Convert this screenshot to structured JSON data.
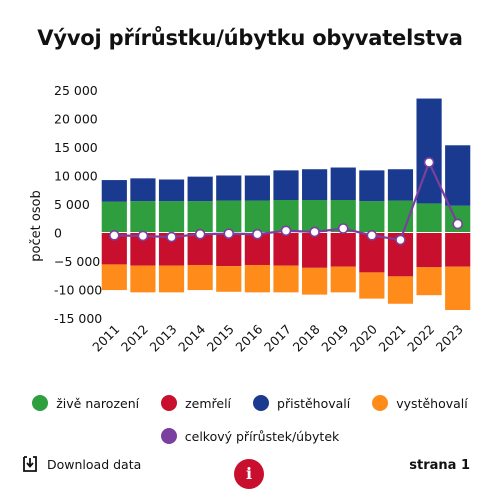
{
  "title": "Vývoj přírůstku/úbytku obyvatelstva",
  "colors": {
    "births": "#2e9e3e",
    "deaths": "#c8102e",
    "immigrants": "#1a3a8f",
    "emigrants": "#ff8c1a",
    "total": "#7b3fa0"
  },
  "legend": {
    "births": "živě narození",
    "deaths": "zemřelí",
    "immigrants": "přistěhovalí",
    "emigrants": "vystěhovalí",
    "total": "celkový přírůstek/úbytek"
  },
  "footer": {
    "download_label": "Download data",
    "download_icon": "download-icon",
    "info_label": "i",
    "page_label": "strana 1"
  },
  "chart_data": {
    "type": "bar",
    "title": "Vývoj přírůstku/úbytku obyvatelstva",
    "ylabel": "počet osob",
    "xlabel": "",
    "ylim": [
      -16000,
      25000
    ],
    "yticks": [
      25000,
      20000,
      15000,
      10000,
      5000,
      0,
      -5000,
      -10000,
      -15000
    ],
    "ytick_labels": [
      "25 000",
      "20 000",
      "15 000",
      "10 000",
      "5 000",
      "0",
      "−5 000",
      "-10 000",
      "-15 000"
    ],
    "categories": [
      "2011",
      "2012",
      "2013",
      "2014",
      "2015",
      "2016",
      "2017",
      "2018",
      "2019",
      "2020",
      "2021",
      "2022",
      "2023"
    ],
    "stacked": true,
    "series": [
      {
        "name": "živě narození",
        "key": "births",
        "values": [
          5400,
          5500,
          5500,
          5500,
          5600,
          5600,
          5700,
          5700,
          5700,
          5500,
          5600,
          5100,
          4700
        ]
      },
      {
        "name": "přistěhovalí",
        "key": "immigrants",
        "values": [
          3800,
          4000,
          3800,
          4300,
          4400,
          4400,
          5200,
          5400,
          5700,
          5400,
          5500,
          18400,
          10600
        ]
      },
      {
        "name": "zemřelí",
        "key": "deaths",
        "values": [
          -5600,
          -5800,
          -5800,
          -5700,
          -5900,
          -5700,
          -5800,
          -6200,
          -6000,
          -7000,
          -7700,
          -6100,
          -6000
        ]
      },
      {
        "name": "vystěhovalí",
        "key": "emigrants",
        "values": [
          -4500,
          -4700,
          -4700,
          -4400,
          -4500,
          -4800,
          -4700,
          -4700,
          -4500,
          -4600,
          -4800,
          -4900,
          -7600
        ]
      },
      {
        "name": "celkový přírůstek/úbytek",
        "key": "total",
        "type": "line",
        "values": [
          -500,
          -600,
          -800,
          -300,
          -200,
          -300,
          300,
          100,
          700,
          -500,
          -1300,
          12300,
          1500
        ]
      }
    ],
    "legend_position": "bottom",
    "grid": false
  }
}
